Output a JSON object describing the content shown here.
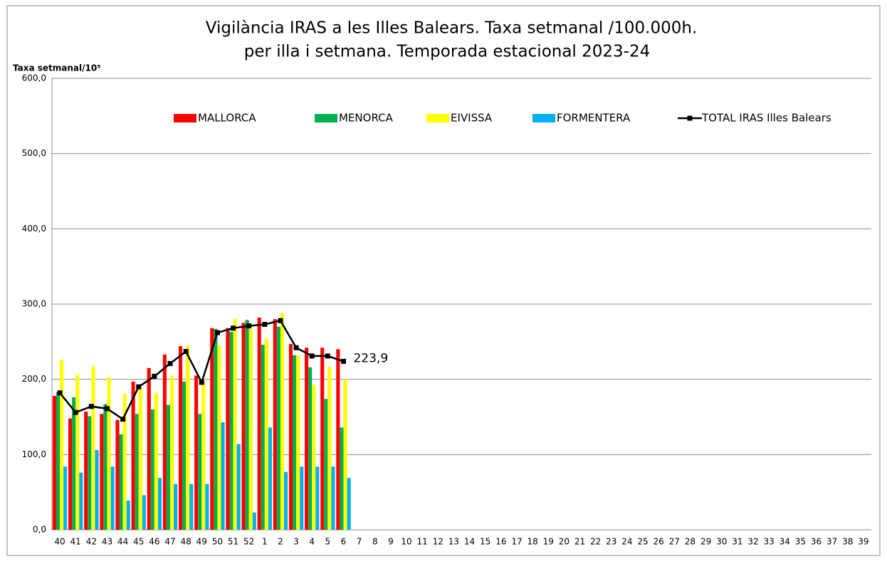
{
  "chart_data": {
    "type": "bar",
    "title": "Vigilància IRAS a les Illes Balears.  Taxa setmanal /100.000h.",
    "subtitle": "per illa i setmana. Temporada estacional 2023-24",
    "ylabel": "Taxa setmanal/10⁵",
    "categories": [
      "40",
      "41",
      "42",
      "43",
      "44",
      "45",
      "46",
      "47",
      "48",
      "49",
      "50",
      "51",
      "52",
      "1",
      "2",
      "3",
      "4",
      "5",
      "6",
      "7",
      "8",
      "9",
      "10",
      "11",
      "12",
      "13",
      "14",
      "15",
      "16",
      "17",
      "18",
      "19",
      "20",
      "21",
      "22",
      "23",
      "24",
      "25",
      "26",
      "27",
      "28",
      "29",
      "30",
      "31",
      "32",
      "33",
      "34",
      "35",
      "36",
      "37",
      "38",
      "39"
    ],
    "series": [
      {
        "name": "MALLORCA",
        "color": "#ff0000",
        "values": [
          178,
          148,
          157,
          154,
          146,
          197,
          215,
          233,
          244,
          205,
          268,
          268,
          275,
          282,
          280,
          247,
          242,
          242,
          240,
          null,
          null,
          null,
          null,
          null,
          null,
          null,
          null,
          null,
          null,
          null,
          null,
          null,
          null,
          null,
          null,
          null,
          null,
          null,
          null,
          null,
          null,
          null,
          null,
          null,
          null,
          null,
          null,
          null,
          null,
          null,
          null,
          null
        ]
      },
      {
        "name": "MENORCA",
        "color": "#00b050",
        "values": [
          183,
          176,
          151,
          167,
          127,
          154,
          160,
          166,
          197,
          154,
          267,
          263,
          279,
          246,
          270,
          232,
          216,
          174,
          136,
          null,
          null,
          null,
          null,
          null,
          null,
          null,
          null,
          null,
          null,
          null,
          null,
          null,
          null,
          null,
          null,
          null,
          null,
          null,
          null,
          null,
          null,
          null,
          null,
          null,
          null,
          null,
          null,
          null,
          null,
          null,
          null,
          null
        ]
      },
      {
        "name": "EIVISSA",
        "color": "#ffff00",
        "values": [
          226,
          206,
          217,
          203,
          181,
          190,
          182,
          205,
          245,
          196,
          245,
          280,
          267,
          254,
          288,
          232,
          193,
          217,
          200,
          null,
          null,
          null,
          null,
          null,
          null,
          null,
          null,
          null,
          null,
          null,
          null,
          null,
          null,
          null,
          null,
          null,
          null,
          null,
          null,
          null,
          null,
          null,
          null,
          null,
          null,
          null,
          null,
          null,
          null,
          null,
          null,
          null
        ]
      },
      {
        "name": "FORMENTERA",
        "color": "#00b0f0",
        "values": [
          84,
          76,
          106,
          84,
          39,
          46,
          69,
          61,
          61,
          61,
          143,
          114,
          23,
          136,
          77,
          84,
          84,
          84,
          69,
          null,
          null,
          null,
          null,
          null,
          null,
          null,
          null,
          null,
          null,
          null,
          null,
          null,
          null,
          null,
          null,
          null,
          null,
          null,
          null,
          null,
          null,
          null,
          null,
          null,
          null,
          null,
          null,
          null,
          null,
          null,
          null,
          null
        ]
      },
      {
        "name": "TOTAL IRAS Illes Balears",
        "color": "#000000",
        "kind": "line",
        "values": [
          182,
          156,
          164,
          161,
          147,
          190,
          204,
          221,
          237,
          196,
          262,
          268,
          271,
          273,
          278,
          242,
          231,
          231,
          223.9,
          null,
          null,
          null,
          null,
          null,
          null,
          null,
          null,
          null,
          null,
          null,
          null,
          null,
          null,
          null,
          null,
          null,
          null,
          null,
          null,
          null,
          null,
          null,
          null,
          null,
          null,
          null,
          null,
          null,
          null,
          null,
          null,
          null
        ],
        "value_labels": [
          null,
          null,
          null,
          null,
          null,
          null,
          null,
          null,
          null,
          null,
          null,
          null,
          null,
          null,
          null,
          null,
          null,
          null,
          "223,9",
          null,
          null,
          null,
          null,
          null,
          null,
          null,
          null,
          null,
          null,
          null,
          null,
          null,
          null,
          null,
          null,
          null,
          null,
          null,
          null,
          null,
          null,
          null,
          null,
          null,
          null,
          null,
          null,
          null,
          null,
          null,
          null,
          null
        ]
      }
    ],
    "ylim": [
      0,
      600
    ],
    "yticks": [
      {
        "value": 0,
        "label": "0,0"
      },
      {
        "value": 100,
        "label": "100,0"
      },
      {
        "value": 200,
        "label": "200,0"
      },
      {
        "value": 300,
        "label": "300,0"
      },
      {
        "value": 400,
        "label": "400,0"
      },
      {
        "value": 500,
        "label": "500,0"
      },
      {
        "value": 600,
        "label": "600,0"
      }
    ],
    "grid": true,
    "legend": "top"
  }
}
